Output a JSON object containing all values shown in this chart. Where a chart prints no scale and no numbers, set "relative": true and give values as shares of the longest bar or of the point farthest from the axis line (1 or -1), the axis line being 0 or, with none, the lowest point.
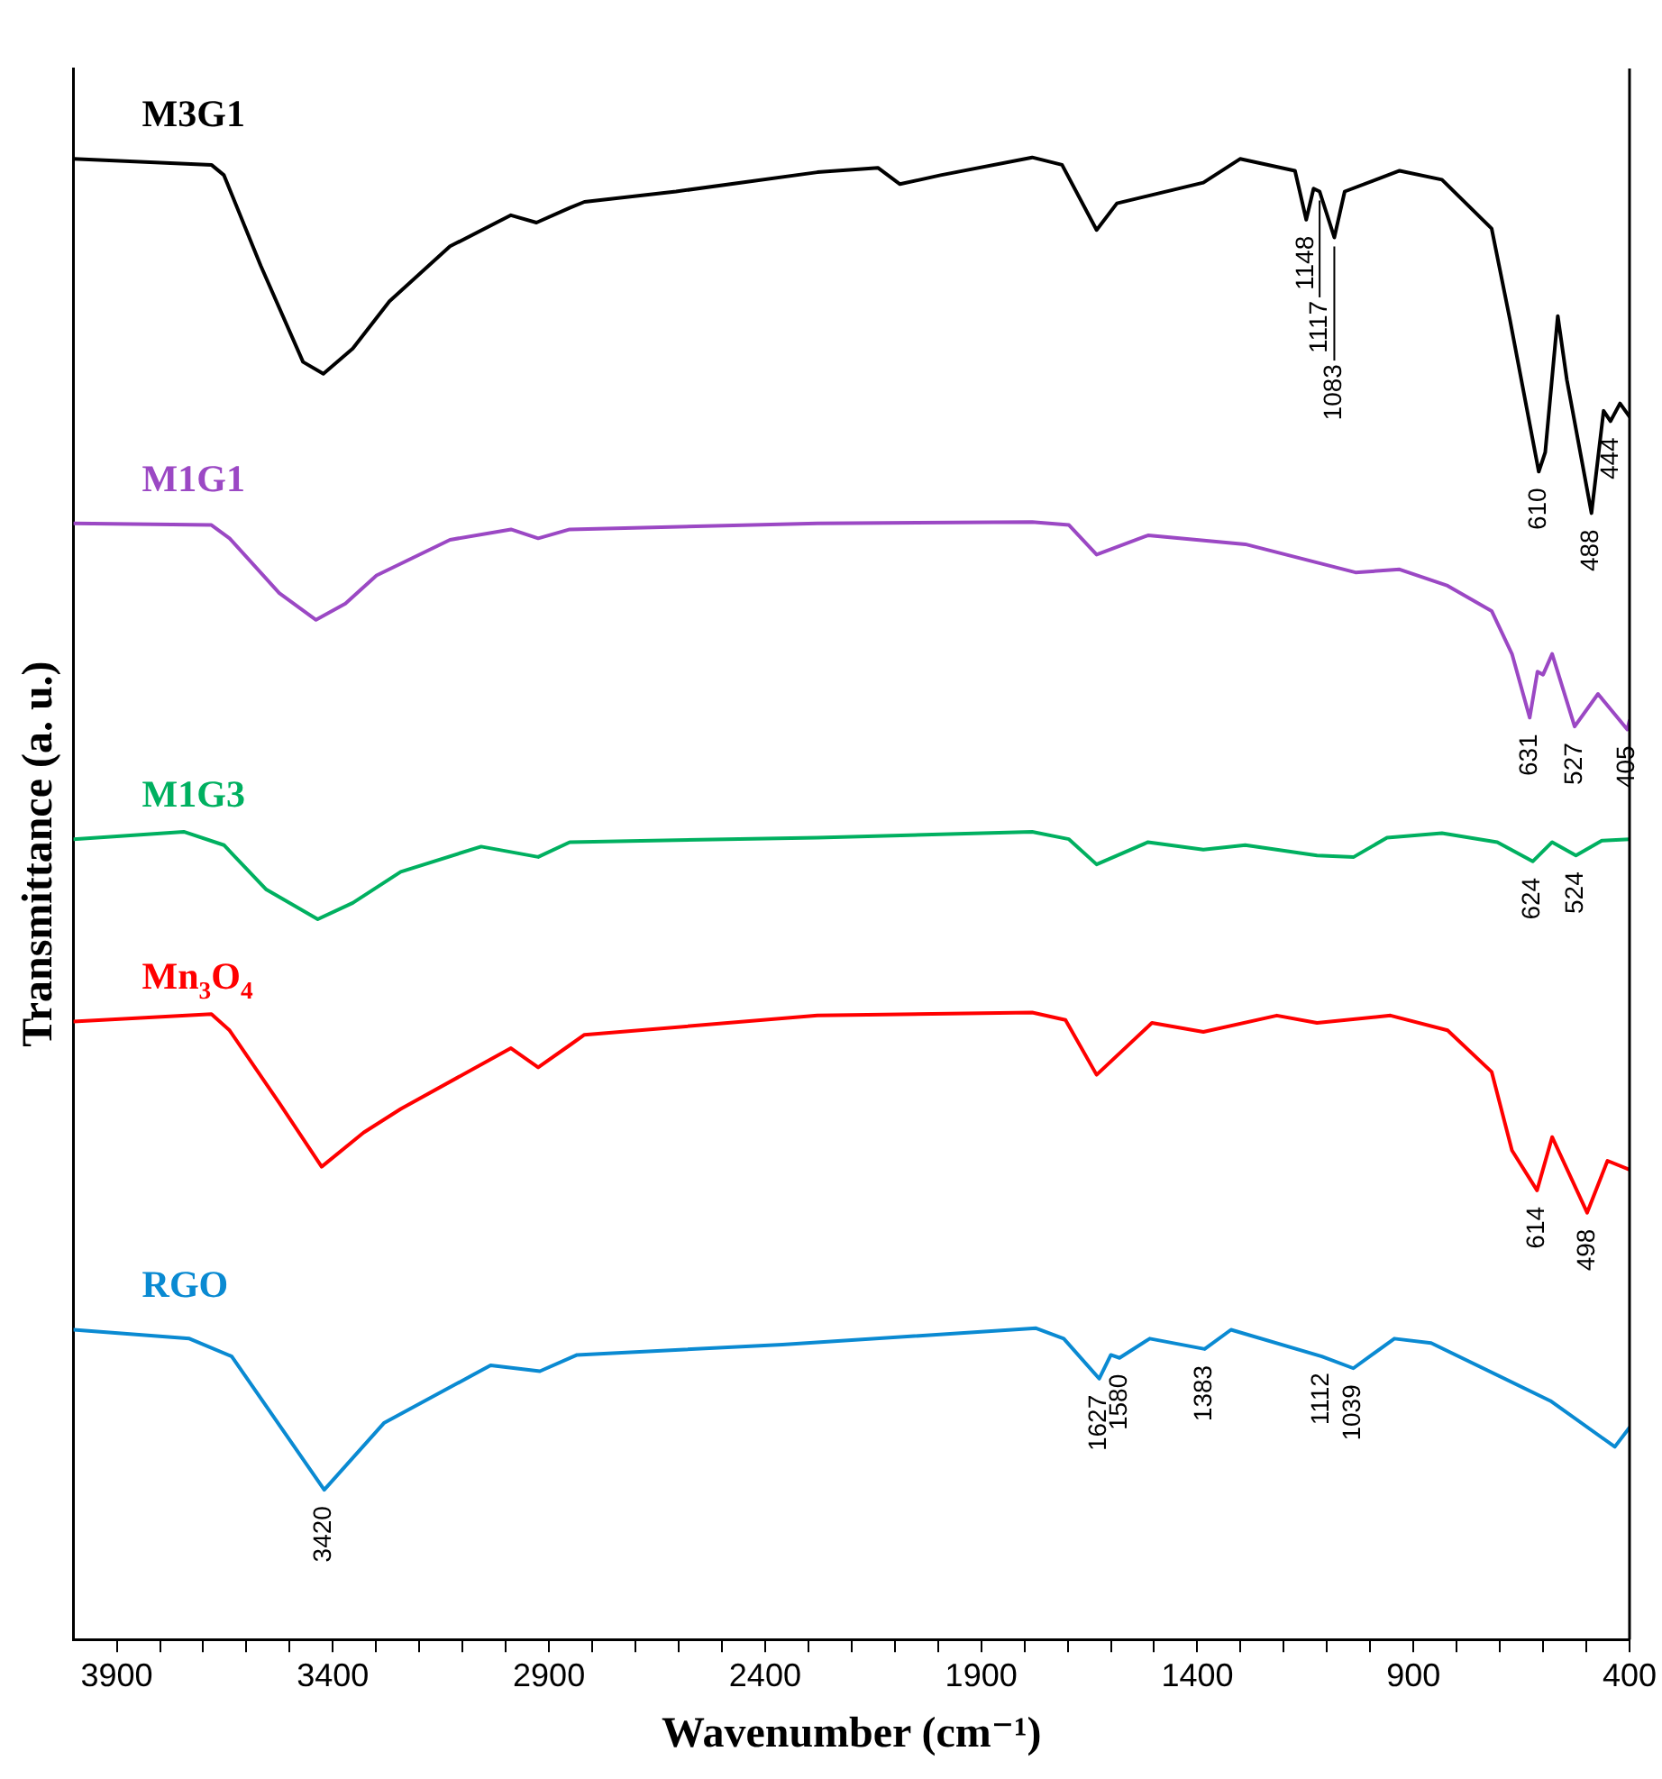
{
  "chart_data": {
    "type": "line",
    "relative": true,
    "xlabel": "Wavenumber (cm⁻¹)",
    "ylabel": "Transmittance (a. u.)",
    "legend": false,
    "grid": false,
    "line_style": "solid",
    "xlim": [
      4000,
      400
    ],
    "xticks": [
      3900,
      {
        "value": 3800,
        "label": null
      },
      {
        "value": 3700,
        "label": null
      },
      {
        "value": 3600,
        "label": null
      },
      {
        "value": 3500,
        "label": null
      },
      3400,
      {
        "value": 3300,
        "label": null
      },
      {
        "value": 3200,
        "label": null
      },
      {
        "value": 3100,
        "label": null
      },
      {
        "value": 3000,
        "label": null
      },
      2900,
      {
        "value": 2800,
        "label": null
      },
      {
        "value": 2700,
        "label": null
      },
      {
        "value": 2600,
        "label": null
      },
      {
        "value": 2500,
        "label": null
      },
      2400,
      {
        "value": 2300,
        "label": null
      },
      {
        "value": 2200,
        "label": null
      },
      {
        "value": 2100,
        "label": null
      },
      {
        "value": 2000,
        "label": null
      },
      1900,
      {
        "value": 1800,
        "label": null
      },
      {
        "value": 1700,
        "label": null
      },
      {
        "value": 1600,
        "label": null
      },
      {
        "value": 1500,
        "label": null
      },
      1400,
      {
        "value": 1300,
        "label": null
      },
      {
        "value": 1200,
        "label": null
      },
      {
        "value": 1100,
        "label": null
      },
      {
        "value": 1000,
        "label": null
      },
      900,
      {
        "value": 800,
        "label": null
      },
      {
        "value": 700,
        "label": null
      },
      {
        "value": 600,
        "label": null
      },
      {
        "value": 500,
        "label": null
      },
      400
    ],
    "series": [
      {
        "name": "M3G1",
        "color": "#000000",
        "x": [
          4000,
          3681,
          3652,
          3567,
          3469,
          3422,
          3354,
          3269,
          3129,
          2988,
          2929,
          2852,
          2818,
          2606,
          2279,
          2139,
          2088,
          1994,
          1782,
          1713,
          1633,
          1586,
          1386,
          1301,
          1174,
          1148,
          1131,
          1117,
          1083,
          1059,
          932,
          834,
          719,
          677,
          610,
          595,
          566,
          545,
          488,
          460,
          444,
          422,
          400
        ],
        "values": [
          0.999,
          0.995,
          0.988,
          0.927,
          0.862,
          0.854,
          0.871,
          0.903,
          0.94,
          0.961,
          0.956,
          0.966,
          0.97,
          0.977,
          0.99,
          0.993,
          0.982,
          0.988,
          1.0,
          0.995,
          0.951,
          0.969,
          0.983,
          0.999,
          0.991,
          0.958,
          0.979,
          0.977,
          0.946,
          0.977,
          0.991,
          0.985,
          0.952,
          0.891,
          0.788,
          0.801,
          0.893,
          0.85,
          0.76,
          0.829,
          0.822,
          0.834,
          0.825
        ]
      },
      {
        "name": "M1G1",
        "color": "#9b48c4",
        "x": [
          4000,
          3681,
          3639,
          3524,
          3439,
          3371,
          3299,
          3129,
          2988,
          2925,
          2852,
          2279,
          1782,
          1697,
          1633,
          1514,
          1289,
          1034,
          932,
          821,
          719,
          672,
          631,
          613,
          600,
          579,
          527,
          473,
          405,
          400
        ],
        "values": [
          0.753,
          0.752,
          0.743,
          0.706,
          0.688,
          0.699,
          0.718,
          0.742,
          0.749,
          0.743,
          0.749,
          0.753,
          0.754,
          0.752,
          0.732,
          0.745,
          0.739,
          0.72,
          0.722,
          0.711,
          0.694,
          0.665,
          0.622,
          0.653,
          0.651,
          0.665,
          0.616,
          0.638,
          0.614,
          0.62
        ]
      },
      {
        "name": "M1G3",
        "color": "#00b060",
        "x": [
          4000,
          3745,
          3652,
          3554,
          3435,
          3354,
          3243,
          3057,
          2925,
          2852,
          2279,
          1782,
          1697,
          1633,
          1514,
          1386,
          1289,
          1123,
          1038,
          961,
          834,
          706,
          624,
          579,
          524,
          464,
          400
        ],
        "values": [
          0.54,
          0.545,
          0.536,
          0.506,
          0.486,
          0.497,
          0.518,
          0.535,
          0.528,
          0.538,
          0.541,
          0.545,
          0.54,
          0.523,
          0.538,
          0.533,
          0.536,
          0.529,
          0.528,
          0.541,
          0.544,
          0.538,
          0.525,
          0.538,
          0.529,
          0.539,
          0.54
        ]
      },
      {
        "name": "Mn$_{3}$O$_{4}$",
        "color": "#ff0000",
        "x": [
          4000,
          3681,
          3639,
          3524,
          3426,
          3329,
          3243,
          2988,
          2925,
          2852,
          2818,
          2279,
          1782,
          1705,
          1633,
          1505,
          1386,
          1216,
          1123,
          953,
          821,
          719,
          672,
          614,
          579,
          498,
          451,
          400
        ],
        "values": [
          0.417,
          0.422,
          0.411,
          0.362,
          0.319,
          0.342,
          0.358,
          0.399,
          0.386,
          0.401,
          0.408,
          0.421,
          0.423,
          0.418,
          0.381,
          0.416,
          0.41,
          0.421,
          0.416,
          0.421,
          0.411,
          0.383,
          0.33,
          0.303,
          0.339,
          0.288,
          0.323,
          0.317
        ]
      },
      {
        "name": "RGO",
        "color": "#0a8ad2",
        "x": [
          4000,
          3732,
          3634,
          3420,
          3282,
          3035,
          2921,
          2835,
          2360,
          1773,
          1709,
          1627,
          1600,
          1580,
          1510,
          1383,
          1322,
          1112,
          1039,
          944,
          859,
          583,
          434,
          400
        ],
        "values": [
          0.209,
          0.203,
          0.191,
          0.101,
          0.146,
          0.185,
          0.181,
          0.192,
          0.199,
          0.21,
          0.203,
          0.176,
          0.192,
          0.19,
          0.203,
          0.196,
          0.209,
          0.191,
          0.183,
          0.203,
          0.2,
          0.161,
          0.13,
          0.143
        ]
      }
    ],
    "annotations": [
      {
        "text": "1148",
        "x": 1148,
        "y": 0.958
      },
      {
        "text": "1117",
        "x": 1117,
        "y": 0.977
      },
      {
        "text": "1083",
        "x": 1083,
        "y": 0.946
      },
      {
        "text": "610",
        "x": 610,
        "y": 0.788
      },
      {
        "text": "488",
        "x": 488,
        "y": 0.76
      },
      {
        "text": "444",
        "x": 444,
        "y": 0.822
      },
      {
        "text": "631",
        "x": 631,
        "y": 0.622
      },
      {
        "text": "527",
        "x": 527,
        "y": 0.616
      },
      {
        "text": "405",
        "x": 405,
        "y": 0.614
      },
      {
        "text": "624",
        "x": 624,
        "y": 0.525
      },
      {
        "text": "524",
        "x": 524,
        "y": 0.529
      },
      {
        "text": "614",
        "x": 614,
        "y": 0.303
      },
      {
        "text": "498",
        "x": 498,
        "y": 0.288
      },
      {
        "text": "3420",
        "x": 3420,
        "y": 0.101
      },
      {
        "text": "1627",
        "x": 1627,
        "y": 0.176
      },
      {
        "text": "1580",
        "x": 1580,
        "y": 0.19
      },
      {
        "text": "1383",
        "x": 1383,
        "y": 0.196
      },
      {
        "text": "1112",
        "x": 1112,
        "y": 0.191
      },
      {
        "text": "1039",
        "x": 1039,
        "y": 0.183
      }
    ]
  }
}
